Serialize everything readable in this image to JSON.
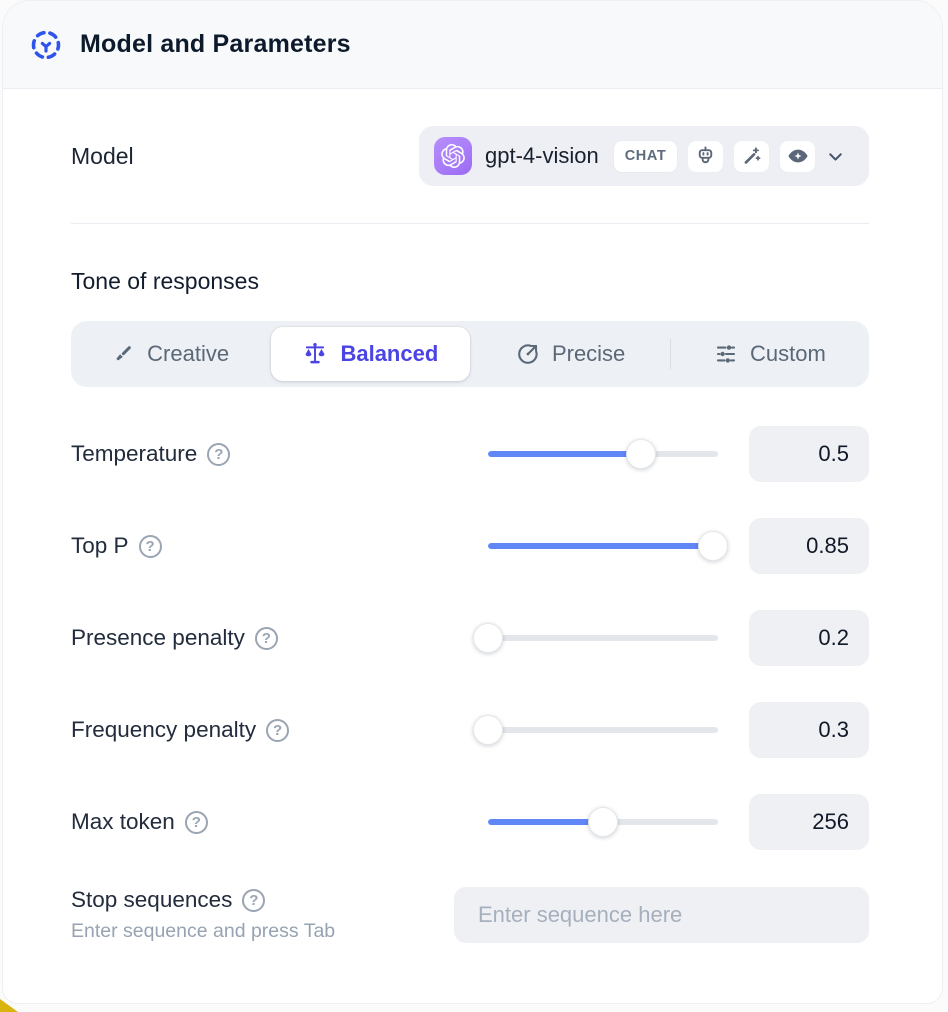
{
  "header": {
    "title": "Model and Parameters"
  },
  "model_row": {
    "label": "Model",
    "selected_model": "gpt-4-vision",
    "type_badge": "CHAT",
    "capability_icons": [
      "assistant-robot",
      "magic-wand",
      "vision-eye"
    ]
  },
  "tone": {
    "heading": "Tone of responses",
    "options": [
      {
        "label": "Creative",
        "icon": "paintbrush-icon",
        "selected": false
      },
      {
        "label": "Balanced",
        "icon": "balance-scale-icon",
        "selected": true
      },
      {
        "label": "Precise",
        "icon": "target-arrow-icon",
        "selected": false
      },
      {
        "label": "Custom",
        "icon": "sliders-icon",
        "selected": false
      }
    ]
  },
  "parameters": [
    {
      "label": "Temperature",
      "value": "0.5",
      "fill_pct": 66.5
    },
    {
      "label": "Top P",
      "value": "0.85",
      "fill_pct": 98
    },
    {
      "label": "Presence penalty",
      "value": "0.2",
      "fill_pct": 0
    },
    {
      "label": "Frequency penalty",
      "value": "0.3",
      "fill_pct": 0
    },
    {
      "label": "Max token",
      "value": "256",
      "fill_pct": 50
    }
  ],
  "stop_sequences": {
    "label": "Stop sequences",
    "hint": "Enter sequence and press Tab",
    "placeholder": "Enter sequence here"
  },
  "help_glyph": "?",
  "colors": {
    "accent": "#4B44E4",
    "slider_fill": "#6186F7",
    "header_icon": "#2F54EB",
    "model_logo_bg": "#A97DF8",
    "corner_accent": "#D9B40E"
  }
}
